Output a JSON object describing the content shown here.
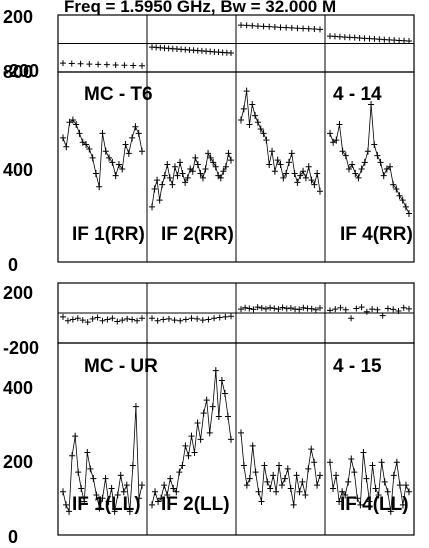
{
  "title": "Freq = 1.5950 GHz, Bw = 32.000 M",
  "chart_data": [
    {
      "type": "line",
      "title": "Freq = 1.5950 GHz, Bw = 32.000 M",
      "baseline": "MC - T6",
      "number_label": "4 - 14",
      "phase_ylim": [
        -200,
        200
      ],
      "amp_ylim": [
        0,
        800
      ],
      "phase_ticks": [
        "200",
        "-200"
      ],
      "amp_ticks": [
        "800",
        "400",
        "0"
      ],
      "grid": false,
      "panels": [
        {
          "name": "IF 1(RR)",
          "phase": [
            -160,
            -163,
            -165,
            -168,
            -170,
            -172,
            -175,
            -178,
            -180,
            -182
          ],
          "amp": [
            540,
            500,
            610,
            620,
            600,
            560,
            520,
            510,
            490,
            450,
            380,
            320,
            560,
            480,
            450,
            430,
            370,
            420,
            400,
            510,
            470,
            540,
            590,
            560,
            480
          ]
        },
        {
          "name": "IF 2(RR)",
          "phase": [
            -30,
            -32,
            -35,
            -38,
            -40,
            -43,
            -45,
            -48,
            -50,
            -53,
            -55,
            -58,
            -60,
            -63,
            -65,
            -68,
            -70,
            -73,
            -75,
            -78
          ],
          "amp": [
            230,
            310,
            350,
            260,
            330,
            370,
            420,
            360,
            330,
            410,
            370,
            430,
            380,
            340,
            360,
            400,
            390,
            450,
            420,
            380,
            360,
            400,
            470,
            450,
            430,
            410,
            370,
            360,
            390,
            410,
            470,
            440
          ]
        },
        {
          "name": "",
          "phase": [
            150,
            148,
            145,
            142,
            140,
            138,
            135,
            132,
            130,
            128,
            125,
            122,
            120,
            118,
            115
          ],
          "amp": [
            620,
            670,
            750,
            600,
            690,
            640,
            610,
            580,
            560,
            530,
            420,
            480,
            390,
            440,
            420,
            360,
            380,
            430,
            470,
            380,
            340,
            370,
            390,
            360,
            410,
            350,
            330,
            380,
            300
          ]
        },
        {
          "name": "IF 4(RR)",
          "phase": [
            60,
            58,
            55,
            52,
            50,
            48,
            45,
            42,
            40,
            38,
            35,
            32,
            30,
            28,
            25,
            22,
            20
          ],
          "amp": [
            560,
            520,
            530,
            600,
            480,
            460,
            400,
            420,
            380,
            360,
            400,
            430,
            480,
            690,
            510,
            460,
            430,
            370,
            400,
            410,
            330,
            310,
            280,
            260,
            230,
            200
          ]
        }
      ]
    },
    {
      "type": "line",
      "baseline": "MC - UR",
      "number_label": "4 - 15",
      "phase_ylim": [
        -200,
        200
      ],
      "amp_ylim": [
        0,
        550
      ],
      "phase_ticks": [
        "200",
        "-200"
      ],
      "amp_ticks": [
        "400",
        "200",
        "0"
      ],
      "grid": false,
      "panels": [
        {
          "name": "IF 1(LL)",
          "phase": [
            -30,
            -60,
            -50,
            -40,
            -55,
            -70,
            -45,
            -35,
            -60,
            -50,
            -40,
            -65,
            -55,
            -45,
            -50,
            -60,
            -40
          ],
          "amp": [
            120,
            80,
            60,
            230,
            290,
            180,
            130,
            90,
            240,
            190,
            160,
            110,
            70,
            100,
            160,
            90,
            130,
            60,
            110,
            170,
            120,
            140,
            60,
            200,
            380,
            100,
            140
          ]
        },
        {
          "name": "IF 2(LL)",
          "phase": [
            -40,
            -60,
            -50,
            -45,
            -55,
            -60,
            -50,
            -40,
            -45,
            -55,
            -50,
            -40,
            -35,
            -30,
            -25
          ],
          "amp": [
            80,
            120,
            90,
            100,
            140,
            110,
            160,
            130,
            120,
            180,
            200,
            260,
            230,
            290,
            240,
            330,
            280,
            360,
            400,
            300,
            380,
            490,
            350,
            460,
            420,
            350,
            280
          ]
        },
        {
          "name": "",
          "phase": [
            30,
            40,
            35,
            28,
            45,
            38,
            32,
            40,
            36,
            30,
            42,
            34,
            38,
            30,
            28,
            40,
            35,
            33,
            25,
            38
          ],
          "amp": [
            300,
            200,
            140,
            160,
            260,
            180,
            120,
            90,
            200,
            150,
            130,
            170,
            120,
            200,
            140,
            160,
            190,
            130,
            80,
            170,
            120,
            150,
            110,
            190,
            250,
            210,
            140,
            170
          ]
        },
        {
          "name": "IF 4(LL)",
          "phase": [
            20,
            30,
            40,
            25,
            -40,
            35,
            45,
            10,
            30,
            25,
            -20,
            35,
            28,
            15,
            40,
            32
          ],
          "amp": [
            210,
            130,
            170,
            90,
            120,
            110,
            150,
            220,
            180,
            100,
            80,
            240,
            160,
            90,
            200,
            130,
            110,
            210,
            150,
            120,
            60,
            170,
            210,
            140,
            80,
            140,
            120
          ]
        }
      ]
    }
  ]
}
